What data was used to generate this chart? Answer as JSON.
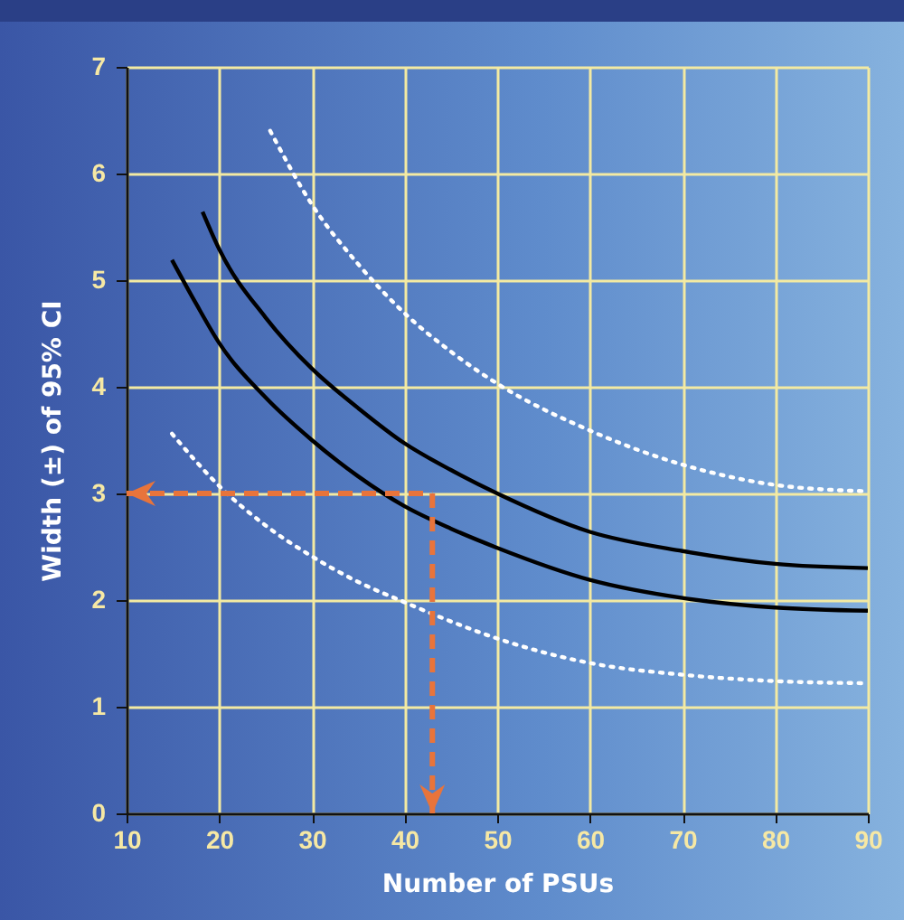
{
  "chart_data": {
    "type": "line",
    "xlabel": "Number of PSUs",
    "ylabel": "Width (±) of 95% CI",
    "xlim": [
      10,
      90
    ],
    "xticks": [
      10,
      20,
      30,
      40,
      50,
      60,
      70,
      80,
      90
    ],
    "ylim": [
      0,
      7
    ],
    "yticks": [
      0,
      1,
      2,
      3,
      4,
      5,
      6,
      7
    ],
    "grid": true,
    "marker": "none",
    "series": [
      {
        "color": "#ffffff",
        "line_style": "dotted",
        "x": [
          25.5,
          30,
          35,
          40,
          45,
          50,
          60,
          70,
          80,
          90
        ],
        "values": [
          6.4,
          5.71,
          5.15,
          4.69,
          4.33,
          4.03,
          3.59,
          3.27,
          3.08,
          3.02
        ]
      },
      {
        "color": "#000000",
        "line_style": "solid",
        "x": [
          18.2,
          20,
          25,
          30,
          35,
          40,
          45,
          50,
          60,
          70,
          80,
          90
        ],
        "values": [
          5.64,
          5.29,
          4.65,
          4.17,
          3.8,
          3.47,
          3.22,
          3.0,
          2.64,
          2.46,
          2.34,
          2.3
        ]
      },
      {
        "color": "#000000",
        "line_style": "solid",
        "x": [
          14.9,
          17.5,
          20,
          25,
          30,
          35,
          40,
          45,
          50,
          60,
          70,
          80,
          90
        ],
        "values": [
          5.19,
          4.78,
          4.41,
          3.9,
          3.5,
          3.16,
          2.88,
          2.67,
          2.49,
          2.19,
          2.02,
          1.93,
          1.9
        ]
      },
      {
        "color": "#ffffff",
        "line_style": "dotted",
        "x": [
          14.9,
          17.5,
          20,
          25,
          30,
          35,
          40,
          45,
          50,
          60,
          70,
          80,
          90
        ],
        "values": [
          3.56,
          3.3,
          3.07,
          2.7,
          2.41,
          2.17,
          1.98,
          1.8,
          1.64,
          1.41,
          1.3,
          1.24,
          1.22
        ]
      }
    ],
    "ref_lines": [
      {
        "axis": "x",
        "value": 43,
        "color": "#e8743b",
        "line_style": "dashed"
      },
      {
        "axis": "y",
        "value": 3,
        "color": "#e8743b",
        "line_style": "dashed"
      }
    ]
  }
}
